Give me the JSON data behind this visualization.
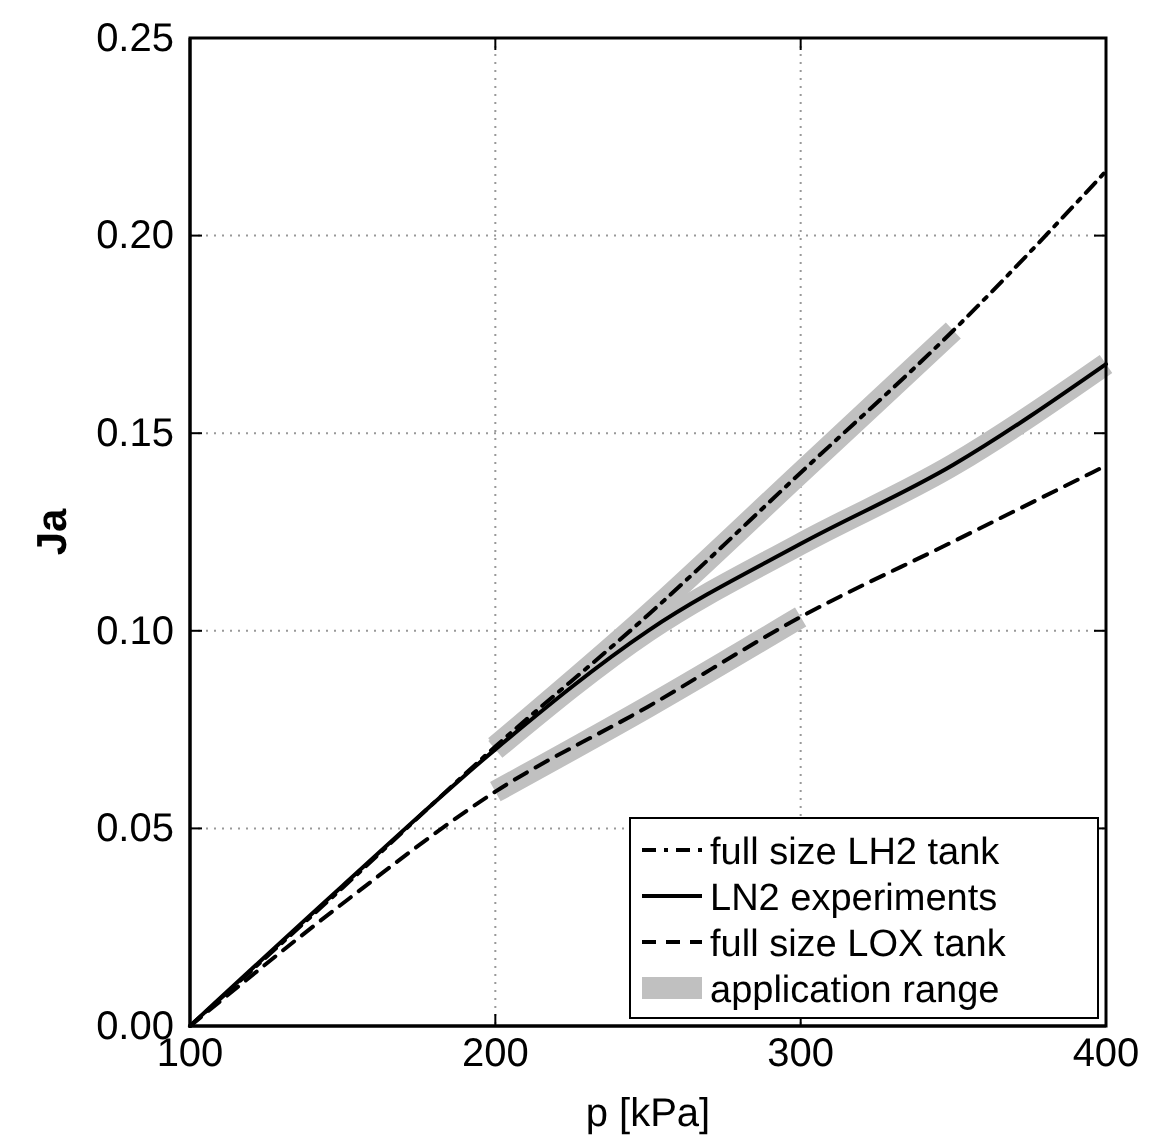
{
  "chart_data": {
    "type": "line",
    "xlabel": "p [kPa]",
    "ylabel": "Ja",
    "xlim": [
      100,
      400
    ],
    "ylim": [
      0,
      0.25
    ],
    "xticks": [
      100,
      200,
      300,
      400
    ],
    "yticks": [
      {
        "value": 0,
        "label": "0.00"
      },
      {
        "value": 0.05,
        "label": "0.05"
      },
      {
        "value": 0.1,
        "label": "0.10"
      },
      {
        "value": 0.15,
        "label": "0.15"
      },
      {
        "value": 0.2,
        "label": "0.20"
      },
      {
        "value": 0.25,
        "label": "0.25"
      }
    ],
    "grid": true,
    "legend": "bottom right",
    "marker": "none",
    "series": [
      {
        "name": "full size LH2 tank",
        "color": "#000000",
        "line_style": "dashdot",
        "x": [
          100,
          150,
          200,
          250,
          300,
          350,
          400
        ],
        "values": [
          0,
          0.035,
          0.0707,
          0.104,
          0.14,
          0.176,
          0.2163
        ]
      },
      {
        "name": "LN2 experiments",
        "color": "#000000",
        "line_style": "solid",
        "x": [
          100,
          150,
          200,
          250,
          300,
          350,
          400
        ],
        "values": [
          0,
          0.0355,
          0.07,
          0.1,
          0.122,
          0.142,
          0.1675
        ]
      },
      {
        "name": "full size LOX tank",
        "color": "#000000",
        "line_style": "dashed",
        "x": [
          100,
          150,
          200,
          250,
          300,
          350,
          400
        ],
        "values": [
          0,
          0.031,
          0.0593,
          0.0808,
          0.1035,
          0.1226,
          0.1418
        ]
      },
      {
        "name": "application range",
        "color": "#c0c0c0",
        "line_style": "solid",
        "x": [
          200,
          250,
          300,
          350
        ],
        "values": [
          0.0707,
          0.104,
          0.14,
          0.176
        ]
      },
      {
        "color": "#c0c0c0",
        "line_style": "solid",
        "x": [
          200,
          250,
          300,
          350,
          400
        ],
        "values": [
          0.07,
          0.1,
          0.122,
          0.142,
          0.1675
        ]
      },
      {
        "color": "#c0c0c0",
        "line_style": "solid",
        "x": [
          200,
          250,
          300
        ],
        "values": [
          0.0593,
          0.0808,
          0.1035
        ]
      }
    ]
  }
}
